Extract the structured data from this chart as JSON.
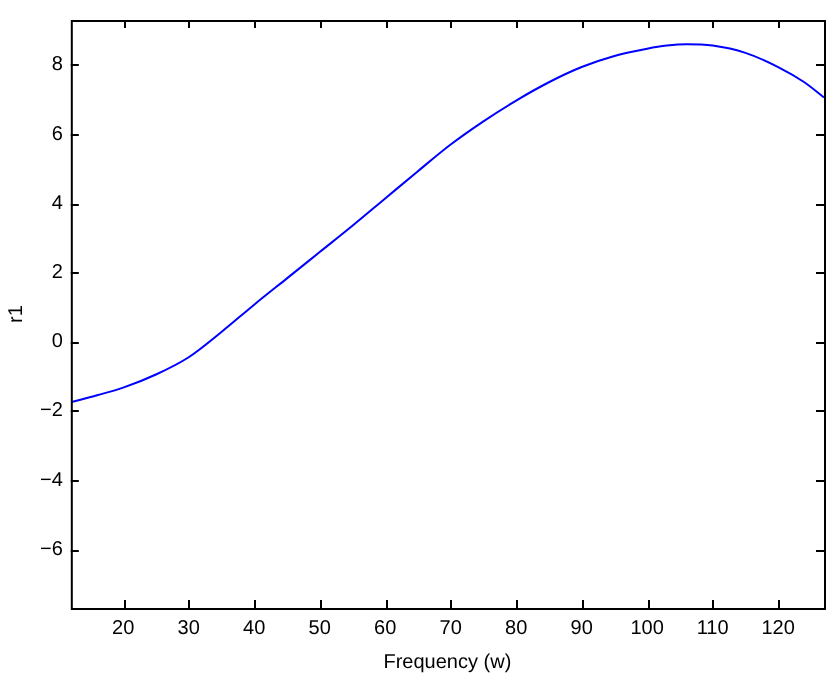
{
  "chart_data": {
    "type": "line",
    "xlabel": "Frequency (w)",
    "ylabel": "r1",
    "x": [
      12,
      16,
      20,
      25,
      30,
      35,
      40,
      45,
      50,
      55,
      60,
      65,
      70,
      75,
      80,
      85,
      90,
      95,
      100,
      103,
      106,
      110,
      115,
      120,
      124,
      127
    ],
    "series": [
      {
        "color": "#0000ff",
        "values": [
          -1.75,
          -1.55,
          -1.33,
          -0.95,
          -0.45,
          0.28,
          1.07,
          1.83,
          2.59,
          3.35,
          4.14,
          4.93,
          5.7,
          6.37,
          6.97,
          7.5,
          7.94,
          8.26,
          8.47,
          8.56,
          8.6,
          8.56,
          8.35,
          7.94,
          7.5,
          7.06
        ]
      }
    ],
    "xlim": [
      12,
      127
    ],
    "ylim": [
      -7.7,
      9.3
    ],
    "xticks": [
      20,
      30,
      40,
      50,
      60,
      70,
      80,
      90,
      100,
      110,
      120
    ],
    "yticks": [
      -6,
      -4,
      -2,
      0,
      2,
      4,
      6,
      8
    ],
    "grid": false,
    "legend": false,
    "marker": "none",
    "line_style": "solid"
  }
}
